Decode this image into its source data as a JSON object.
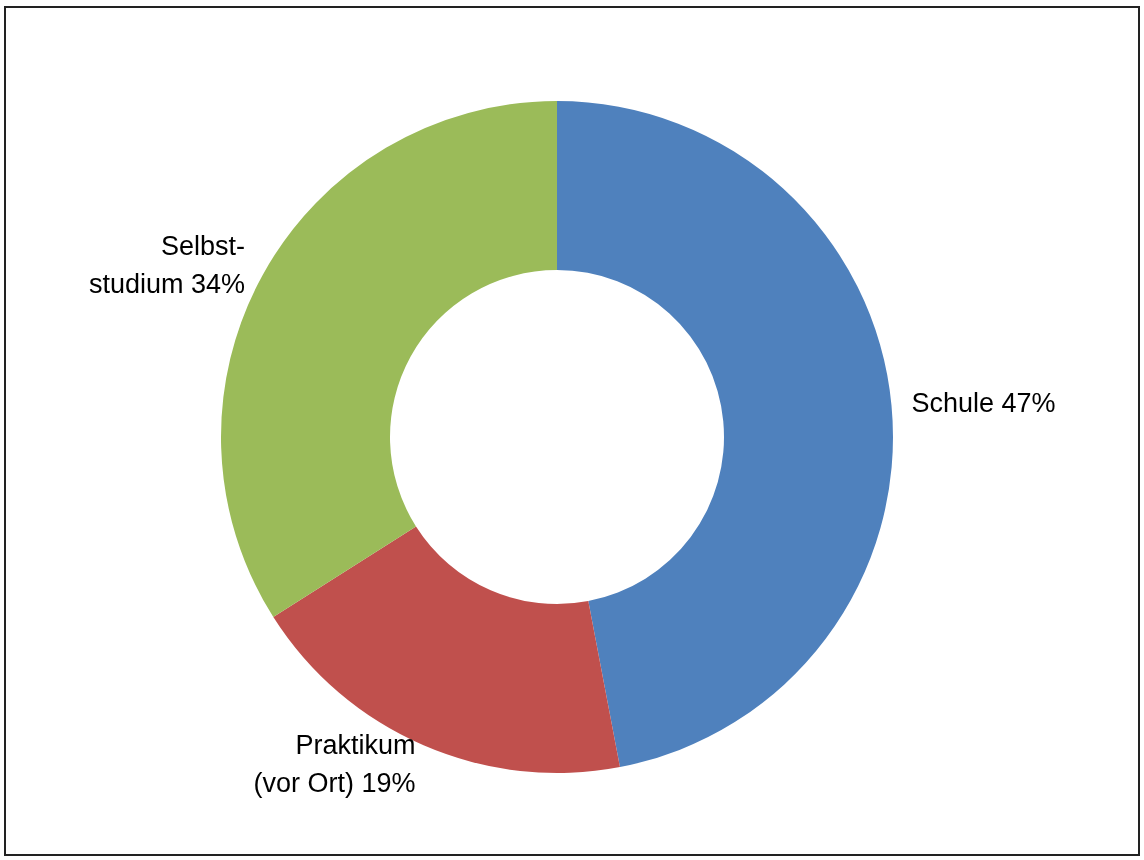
{
  "chart_data": {
    "type": "donut",
    "categories": [
      "Schule",
      "Praktikum\n(vor Ort)",
      "Selbst-\nstudium"
    ],
    "values": [
      47,
      19,
      34
    ],
    "value_labels": [
      "47%",
      "19%",
      "34%"
    ],
    "colors": [
      "#4f81bd",
      "#c0504d",
      "#9bbb59"
    ],
    "legend": false
  }
}
